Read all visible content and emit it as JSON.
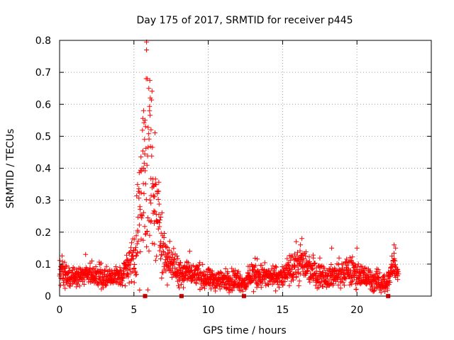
{
  "chart_data": {
    "type": "scatter",
    "title": "Day 175 of 2017, SRMTID for receiver p445",
    "xlabel": "GPS time / hours",
    "ylabel": "SRMTID / TECUs",
    "xlim": [
      0,
      25
    ],
    "ylim": [
      0,
      0.8
    ],
    "xticks": [
      0,
      5,
      10,
      15,
      20
    ],
    "yticks": [
      0,
      0.1,
      0.2,
      0.3,
      0.4,
      0.5,
      0.6,
      0.7,
      0.8
    ],
    "xtick_labels": [
      "0",
      "5",
      "10",
      "15",
      "20"
    ],
    "ytick_labels": [
      "0",
      "0.1",
      "0.2",
      "0.3",
      "0.4",
      "0.5",
      "0.6",
      "0.7",
      "0.8"
    ],
    "grid": true,
    "marker": "plus",
    "color": "#ff0000",
    "x_range_of_data": [
      0,
      22.8
    ],
    "envelope": {
      "hours": [
        0,
        0.5,
        1,
        2,
        3,
        4,
        4.5,
        5,
        5.3,
        5.6,
        5.8,
        6,
        6.3,
        6.7,
        7,
        7.5,
        8,
        9,
        10,
        11,
        12,
        12.5,
        13,
        14,
        15,
        16,
        16.5,
        17,
        18,
        19,
        19.5,
        20,
        21,
        22,
        22.5,
        22.8
      ],
      "median_tecu": [
        0.08,
        0.06,
        0.06,
        0.07,
        0.06,
        0.06,
        0.08,
        0.13,
        0.22,
        0.32,
        0.38,
        0.42,
        0.32,
        0.22,
        0.14,
        0.1,
        0.08,
        0.07,
        0.05,
        0.05,
        0.05,
        0.04,
        0.07,
        0.06,
        0.06,
        0.1,
        0.1,
        0.08,
        0.06,
        0.07,
        0.08,
        0.07,
        0.05,
        0.04,
        0.1,
        0.06
      ],
      "spread_tecu": [
        0.03,
        0.025,
        0.02,
        0.02,
        0.02,
        0.02,
        0.03,
        0.05,
        0.1,
        0.16,
        0.2,
        0.22,
        0.15,
        0.08,
        0.05,
        0.03,
        0.03,
        0.025,
        0.02,
        0.02,
        0.02,
        0.015,
        0.03,
        0.02,
        0.02,
        0.035,
        0.03,
        0.03,
        0.02,
        0.025,
        0.03,
        0.025,
        0.02,
        0.02,
        0.03,
        0.02
      ]
    },
    "peak_points": [
      {
        "x": 5.85,
        "y": 0.795
      },
      {
        "x": 5.85,
        "y": 0.77
      },
      {
        "x": 5.9,
        "y": 0.68
      },
      {
        "x": 6.0,
        "y": 0.65
      },
      {
        "x": 6.1,
        "y": 0.62
      },
      {
        "x": 6.05,
        "y": 0.58
      },
      {
        "x": 5.65,
        "y": 0.58
      },
      {
        "x": 5.75,
        "y": 0.55
      },
      {
        "x": 6.15,
        "y": 0.52
      },
      {
        "x": 16.3,
        "y": 0.18
      },
      {
        "x": 16.2,
        "y": 0.16
      },
      {
        "x": 22.5,
        "y": 0.16
      },
      {
        "x": 22.6,
        "y": 0.15
      },
      {
        "x": 18.3,
        "y": 0.15
      },
      {
        "x": 20.0,
        "y": 0.15
      },
      {
        "x": 1.75,
        "y": 0.13
      },
      {
        "x": 8.75,
        "y": 0.14
      }
    ],
    "baseline_markers": [
      5.75,
      8.2,
      12.4,
      22.1
    ]
  }
}
